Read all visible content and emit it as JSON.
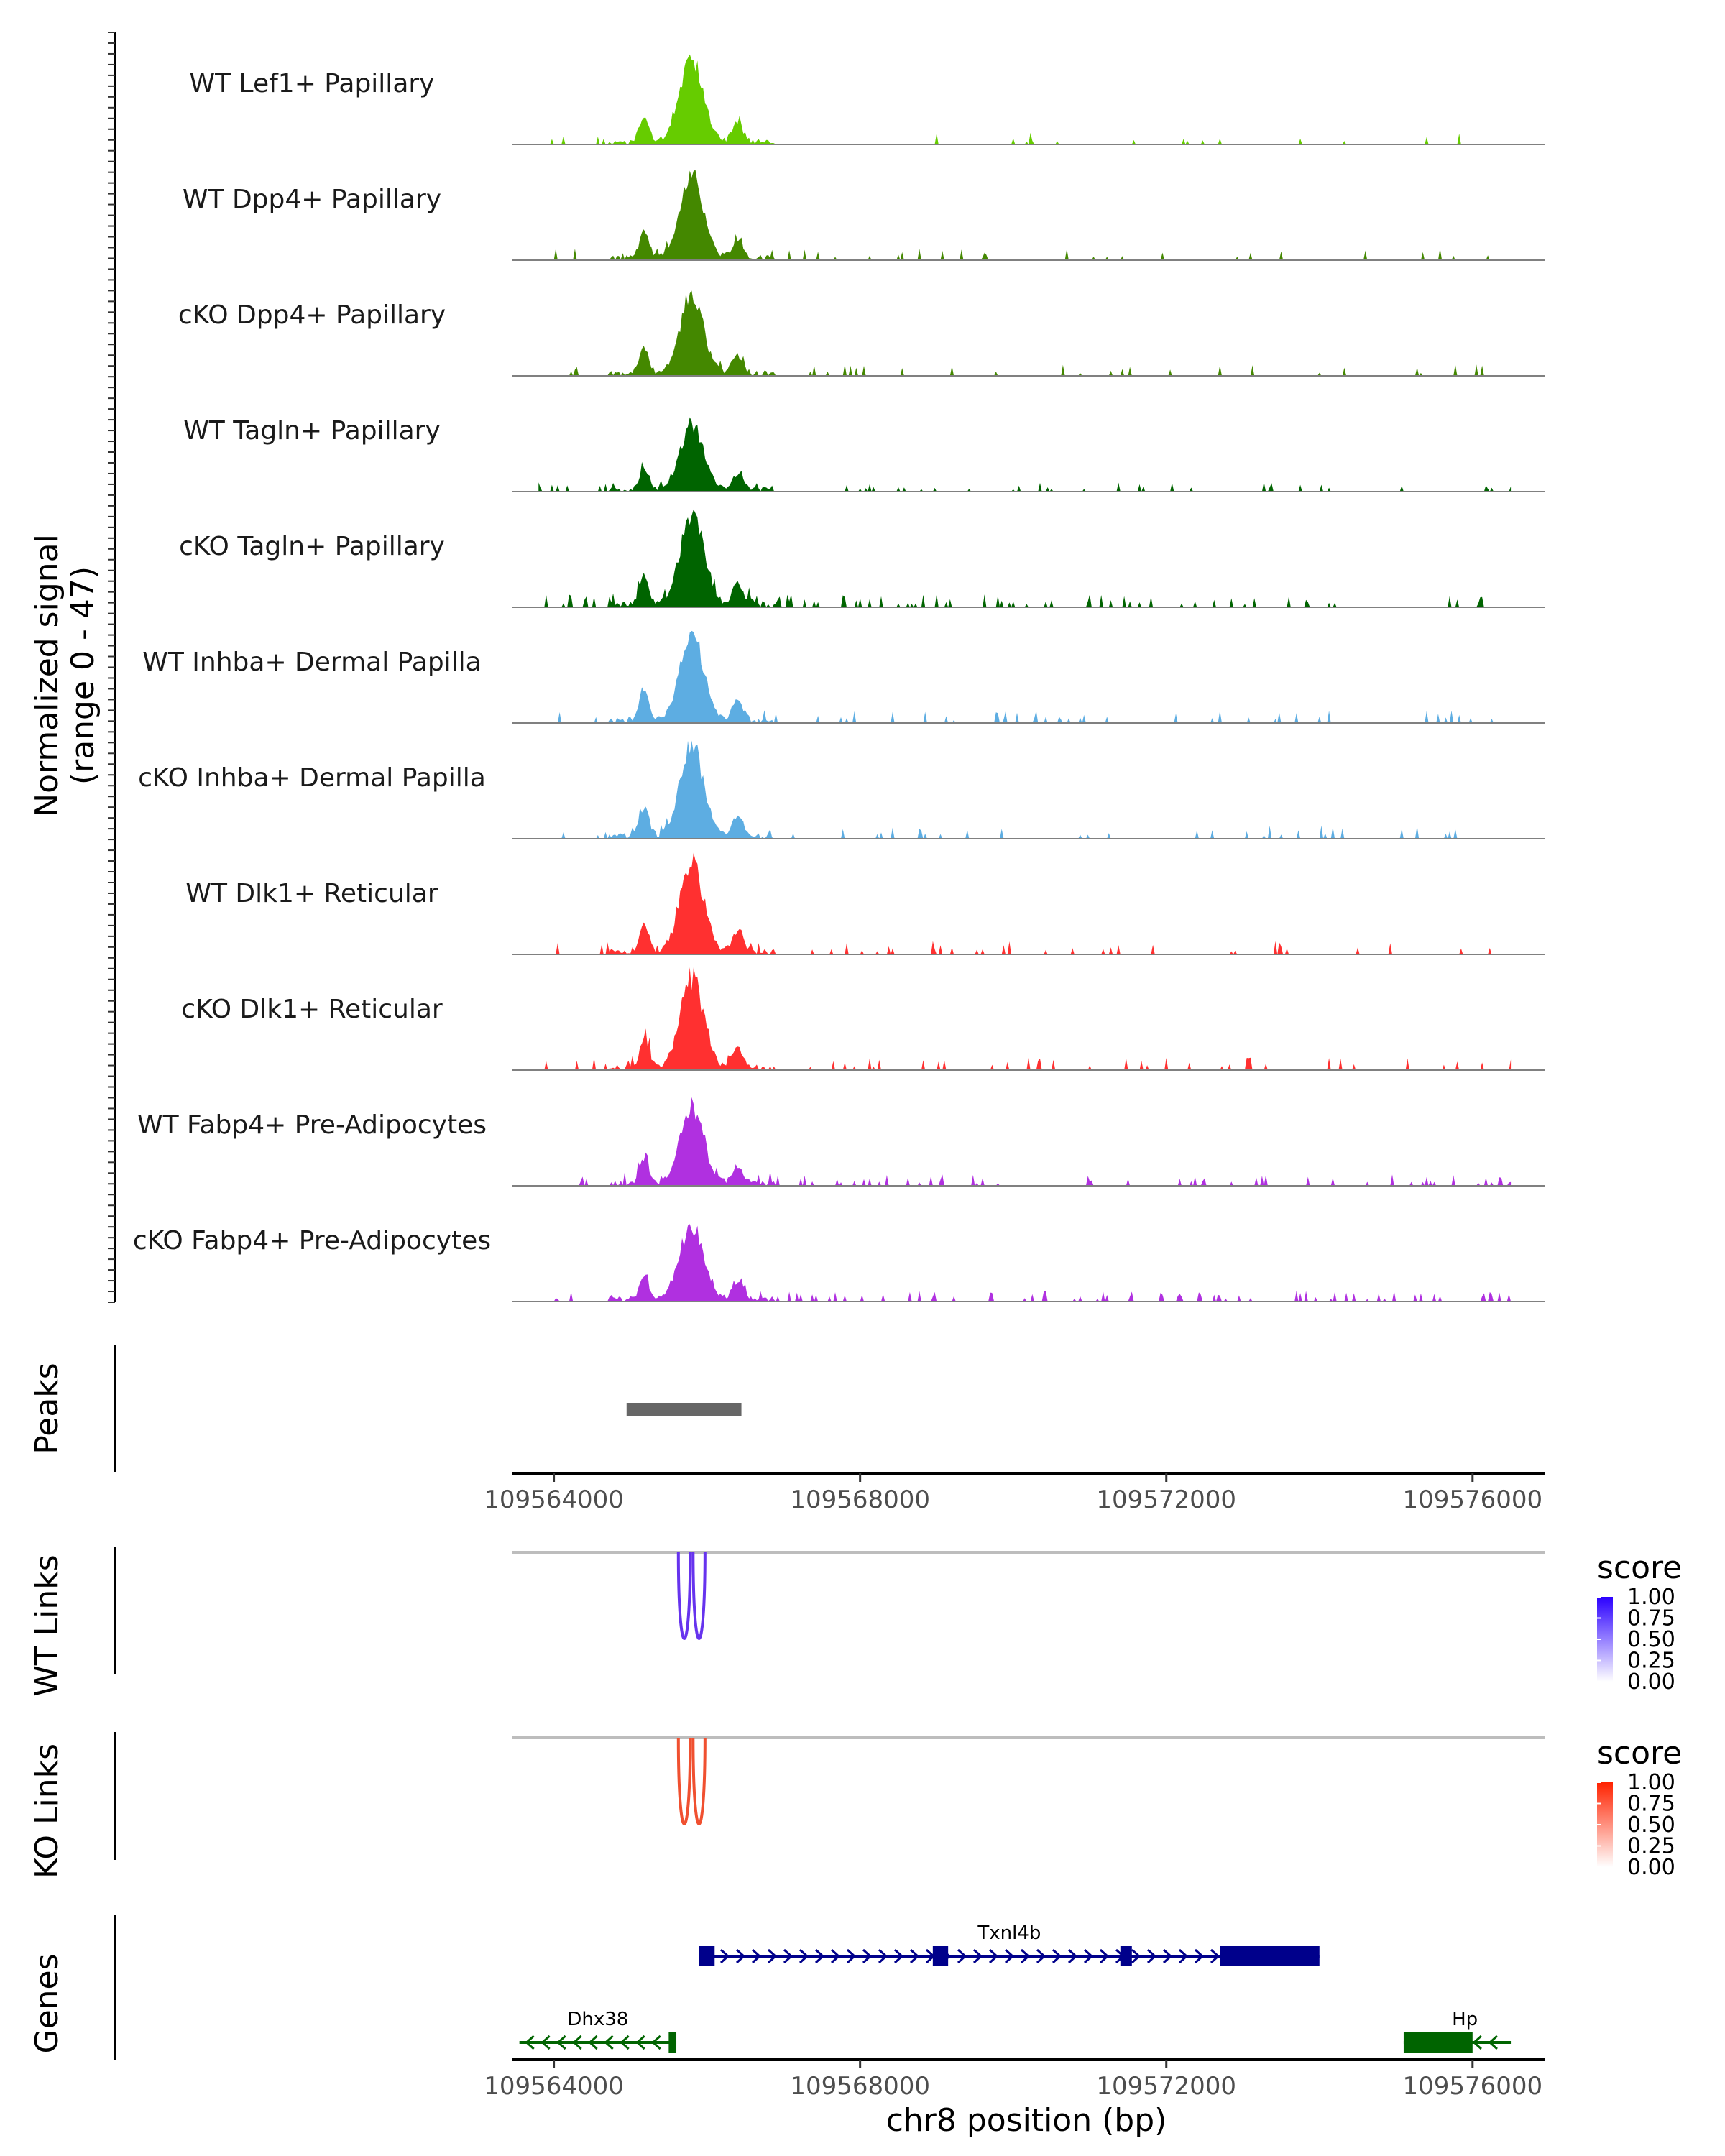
{
  "chart_data": {
    "type": "area",
    "title": "",
    "y_axis_title_line1": "Normalized signal",
    "y_axis_title_line2": "(range 0 - 47)",
    "ylim": [
      0,
      47
    ],
    "xlabel": "chr8 position (bp)",
    "xlim": [
      109563450,
      109576950
    ],
    "x_ticks": [
      109564000,
      109568000,
      109572000,
      109576000
    ],
    "x_tick_labels": [
      "109564000",
      "109568000",
      "109572000",
      "109576000"
    ],
    "peak_center": 109565800,
    "tracks": [
      {
        "name": "WT Lef1+ Papillary",
        "color": "#66CC00",
        "max": 43,
        "noise": 0.05
      },
      {
        "name": "WT Dpp4+ Papillary",
        "color": "#448800",
        "max": 42,
        "noise": 0.07
      },
      {
        "name": "cKO Dpp4+ Papillary",
        "color": "#448800",
        "max": 41,
        "noise": 0.07
      },
      {
        "name": "WT Tagln+ Papillary",
        "color": "#006400",
        "max": 34,
        "noise": 0.1
      },
      {
        "name": "cKO Tagln+ Papillary",
        "color": "#006400",
        "max": 47,
        "noise": 0.14
      },
      {
        "name": "WT Inhba+ Dermal Papilla",
        "color": "#5DADE2",
        "max": 45,
        "noise": 0.1
      },
      {
        "name": "cKO Inhba+ Dermal Papilla",
        "color": "#5DADE2",
        "max": 47,
        "noise": 0.1
      },
      {
        "name": "WT Dlk1+ Reticular",
        "color": "#FF3030",
        "max": 47,
        "noise": 0.08
      },
      {
        "name": "cKO Dlk1+ Reticular",
        "color": "#FF3030",
        "max": 46,
        "noise": 0.09
      },
      {
        "name": "WT Fabp4+ Pre-Adipocytes",
        "color": "#B030E0",
        "max": 40,
        "noise": 0.12
      },
      {
        "name": "cKO Fabp4+ Pre-Adipocytes",
        "color": "#B030E0",
        "max": 38,
        "noise": 0.16
      }
    ],
    "peaks_track": {
      "label": "Peaks",
      "color": "#666666",
      "peaks": [
        {
          "start": 109564950,
          "end": 109566450
        }
      ]
    },
    "wt_links": {
      "label": "WT Links",
      "legend_title": "score",
      "legend_ticks": [
        "1.00",
        "0.75",
        "0.50",
        "0.25",
        "0.00"
      ],
      "color_high": "#2B00FF",
      "color_low": "#FFFFFF",
      "link_color": "#6633EE",
      "links": [
        {
          "start": 109565720,
          "end": 109565880,
          "score": 0.85
        }
      ]
    },
    "ko_links": {
      "label": "KO Links",
      "legend_title": "score",
      "legend_ticks": [
        "1.00",
        "0.75",
        "0.50",
        "0.25",
        "0.00"
      ],
      "color_high": "#FF2200",
      "color_low": "#FFFFFF",
      "link_color": "#F05030",
      "links": [
        {
          "start": 109565720,
          "end": 109565880,
          "score": 0.8
        }
      ]
    },
    "genes_track": {
      "label": "Genes",
      "genes": [
        {
          "name": "Txnl4b",
          "start": 109565900,
          "end": 109574000,
          "strand": "+",
          "color": "#00008B",
          "exons": [
            [
              109565900,
              109566100
            ],
            [
              109568950,
              109569150
            ],
            [
              109571400,
              109571550
            ],
            [
              109572700,
              109574000
            ]
          ]
        },
        {
          "name": "Dhx38",
          "start": 109563550,
          "end": 109565600,
          "strand": "-",
          "color": "#006400",
          "exons": [
            [
              109565500,
              109565600
            ]
          ]
        },
        {
          "name": "Hp",
          "start": 109575100,
          "end": 109576500,
          "strand": "-",
          "color": "#006400",
          "exons": [
            [
              109575100,
              109576000
            ]
          ]
        }
      ]
    }
  }
}
